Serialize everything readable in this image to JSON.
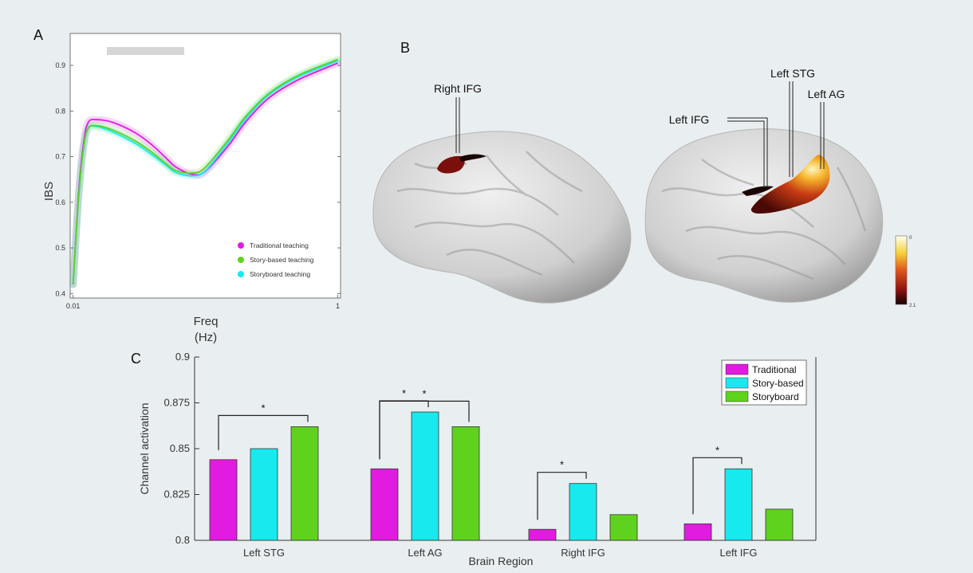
{
  "panels": {
    "a": "A",
    "b": "B",
    "c": "C"
  },
  "colors": {
    "traditional": "#e11be0",
    "story_based": "#17e9ee",
    "storyboard": "#5fd21e",
    "gray_bar": "#d6d6d6"
  },
  "chart_data": [
    {
      "type": "line",
      "panel": "A",
      "xlabel": "Freq",
      "xunit": "(Hz)",
      "ylabel": "IBS",
      "xscale": "log",
      "xlim": [
        0.0095,
        1.05
      ],
      "ylim": [
        0.39,
        0.97
      ],
      "x_tick_labels": [
        "0.01",
        "1"
      ],
      "y_tick_labels": [
        "0.4",
        "0.5",
        "0.6",
        "0.7",
        "0.8",
        "0.9"
      ],
      "legend_position": "bottom-right",
      "series": [
        {
          "name": "Traditional teaching",
          "color": "#e11be0",
          "x": [
            0.01,
            0.011,
            0.012,
            0.013,
            0.015,
            0.02,
            0.03,
            0.04,
            0.05,
            0.06,
            0.08,
            0.1,
            0.15,
            0.2,
            0.3,
            0.5,
            1.0
          ],
          "y": [
            0.42,
            0.62,
            0.73,
            0.775,
            0.781,
            0.775,
            0.751,
            0.724,
            0.698,
            0.677,
            0.661,
            0.668,
            0.725,
            0.775,
            0.828,
            0.868,
            0.905
          ]
        },
        {
          "name": "Story-based teaching",
          "color": "#5fd21e",
          "x": [
            0.01,
            0.011,
            0.012,
            0.013,
            0.015,
            0.02,
            0.03,
            0.04,
            0.05,
            0.06,
            0.08,
            0.1,
            0.15,
            0.2,
            0.3,
            0.5,
            1.0
          ],
          "y": [
            0.42,
            0.61,
            0.72,
            0.762,
            0.768,
            0.758,
            0.733,
            0.708,
            0.685,
            0.669,
            0.664,
            0.677,
            0.738,
            0.787,
            0.838,
            0.878,
            0.913
          ]
        },
        {
          "name": "Storyboard teaching",
          "color": "#17e9ee",
          "x": [
            0.01,
            0.011,
            0.012,
            0.013,
            0.015,
            0.02,
            0.03,
            0.04,
            0.05,
            0.06,
            0.08,
            0.1,
            0.15,
            0.2,
            0.3,
            0.5,
            1.0
          ],
          "y": [
            0.42,
            0.61,
            0.72,
            0.762,
            0.766,
            0.754,
            0.728,
            0.703,
            0.682,
            0.665,
            0.658,
            0.669,
            0.732,
            0.782,
            0.835,
            0.875,
            0.91
          ]
        }
      ]
    },
    {
      "type": "bar",
      "panel": "C",
      "xlabel": "Brain Region",
      "ylabel": "Channel activation",
      "ylim": [
        0.8,
        0.9
      ],
      "y_tick_labels": [
        "0.8",
        "0.825",
        "0.85",
        "0.875",
        "0.9"
      ],
      "categories": [
        "Left STG",
        "Left AG",
        "Right IFG",
        "Left IFG"
      ],
      "legend_position": "top-right",
      "series": [
        {
          "name": "Traditional",
          "color": "#e11be0",
          "values": [
            0.844,
            0.839,
            0.806,
            0.809
          ]
        },
        {
          "name": "Story-based",
          "color": "#17e9ee",
          "values": [
            0.85,
            0.87,
            0.831,
            0.839
          ]
        },
        {
          "name": "Storyboard",
          "color": "#5fd21e",
          "values": [
            0.862,
            0.862,
            0.814,
            0.817
          ]
        }
      ],
      "significance": [
        {
          "category": "Left STG",
          "from": "Traditional",
          "to": "Storyboard",
          "label": "*"
        },
        {
          "category": "Left AG",
          "from": "Traditional",
          "to": "Story-based",
          "label": "*"
        },
        {
          "category": "Left AG",
          "from": "Traditional",
          "to": "Storyboard",
          "label": "*"
        },
        {
          "category": "Right IFG",
          "from": "Traditional",
          "to": "Story-based",
          "label": "*"
        },
        {
          "category": "Left IFG",
          "from": "Traditional",
          "to": "Story-based",
          "label": "*"
        }
      ]
    }
  ],
  "brain": {
    "labels": {
      "right_ifg": "Right IFG",
      "left_stg": "Left STG",
      "left_ag": "Left AG",
      "left_ifg": "Left IFG"
    },
    "colorbar": {
      "top": "0",
      "bottom": "2.1"
    }
  }
}
